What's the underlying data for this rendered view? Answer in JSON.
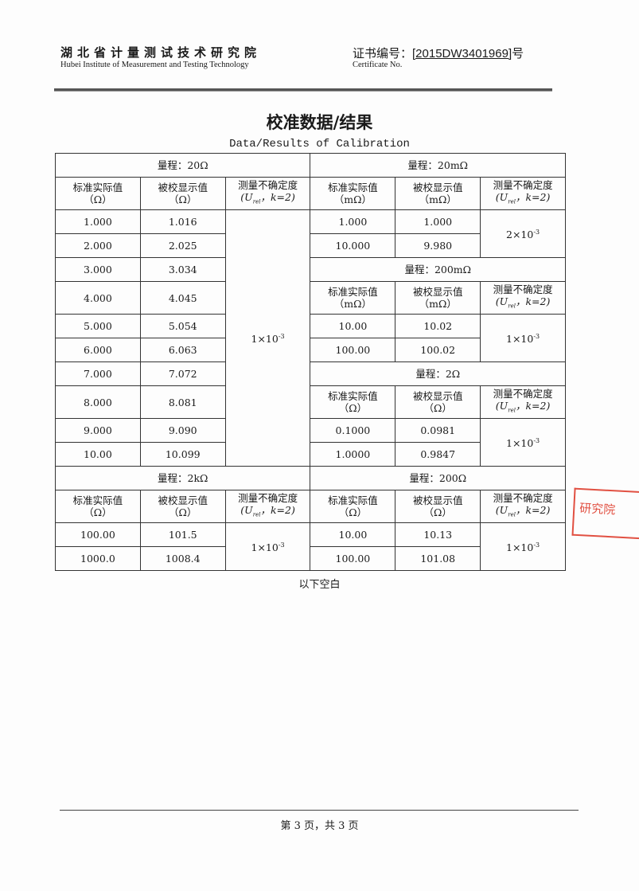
{
  "header": {
    "org_cn": "湖北省计量测试技术研究院",
    "org_en": "Hubei Institute of Measurement and Testing Technology",
    "cert_label_cn": "证书编号：",
    "cert_number": "[2015DW3401969]",
    "cert_suffix": "号",
    "cert_label_en": "Certificate No."
  },
  "title": "校准数据/结果",
  "subtitle": "Data/Results of Calibration",
  "cols": {
    "std_ohm": "标准实际值",
    "disp_ohm": "被校显示值",
    "unc": "测量不确定度",
    "unit_ohm": "（Ω）",
    "unit_mohm": "（mΩ）",
    "unc_u": "U",
    "unc_sub": "rel",
    "unc_k": "，k=2)",
    "unc_open": "("
  },
  "sections": {
    "r20": {
      "range": "量程：20Ω",
      "rows": [
        [
          "1.000",
          "1.016"
        ],
        [
          "2.000",
          "2.025"
        ],
        [
          "3.000",
          "3.034"
        ],
        [
          "4.000",
          "4.045"
        ],
        [
          "5.000",
          "5.054"
        ],
        [
          "6.000",
          "6.063"
        ],
        [
          "7.000",
          "7.072"
        ],
        [
          "8.000",
          "8.081"
        ],
        [
          "9.000",
          "9.090"
        ],
        [
          "10.00",
          "10.099"
        ]
      ],
      "unc": "1×10",
      "exp": "-3"
    },
    "r20m": {
      "range": "量程：20mΩ",
      "rows": [
        [
          "1.000",
          "1.000"
        ],
        [
          "10.000",
          "9.980"
        ]
      ],
      "unc": "2×10",
      "exp": "-3"
    },
    "r200m": {
      "range": "量程：200mΩ",
      "rows": [
        [
          "10.00",
          "10.02"
        ],
        [
          "100.00",
          "100.02"
        ]
      ],
      "unc": "1×10",
      "exp": "-3"
    },
    "r2": {
      "range": "量程：2Ω",
      "rows": [
        [
          "0.1000",
          "0.0981"
        ],
        [
          "1.0000",
          "0.9847"
        ]
      ],
      "unc": "1×10",
      "exp": "-3"
    },
    "r2k": {
      "range": "量程：2kΩ",
      "rows": [
        [
          "100.00",
          "101.5"
        ],
        [
          "1000.0",
          "1008.4"
        ]
      ],
      "unc": "1×10",
      "exp": "-3"
    },
    "r200": {
      "range": "量程：200Ω",
      "rows": [
        [
          "10.00",
          "10.13"
        ],
        [
          "100.00",
          "101.08"
        ]
      ],
      "unc": "1×10",
      "exp": "-3"
    }
  },
  "blank_note": "以下空白",
  "footer": "第 3 页，共 3 页",
  "stamp_text": "研究院",
  "colors": {
    "stamp": "#dd3322",
    "ink": "#1a1a1a"
  }
}
